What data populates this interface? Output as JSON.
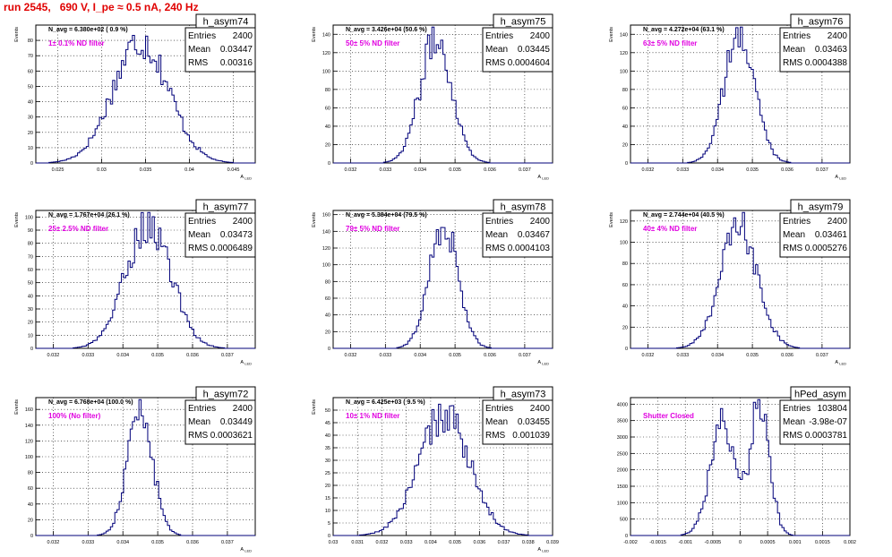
{
  "header": {
    "run_title": "run 2545,   690 V, I_pe ≈ 0.5 nA, 240 Hz"
  },
  "colors": {
    "histogram": "#00007a",
    "annotation": "#e000e0",
    "title": "#e00000",
    "grid": "#000000"
  },
  "chart_data": [
    {
      "type": "histogram",
      "name": "h_asym74",
      "stats": {
        "entries": "2400",
        "mean": "0.03447",
        "rms": "0.00316"
      },
      "navg": "N_avg = 6.380e+02 ( 0.9 %)",
      "filter_label": "1± 0.1% ND filter",
      "ylabel": "Events",
      "xlabel": "A_LED",
      "xlim": [
        0.0225,
        0.0475
      ],
      "ylim": [
        0,
        90
      ],
      "xticks": [
        0.025,
        0.03,
        0.035,
        0.04,
        0.045
      ],
      "xtick_labels": [
        "0.025",
        "0.03",
        "0.035",
        "0.04",
        "0.045"
      ],
      "yticks": [
        0,
        10,
        20,
        30,
        40,
        50,
        60,
        70,
        80
      ],
      "ytick_labels": [
        "0",
        "10",
        "20",
        "30",
        "40",
        "50",
        "60",
        "70",
        "80"
      ],
      "grid": true,
      "mean": 0.03447,
      "sigma": 0.00316,
      "peak": 80
    },
    {
      "type": "histogram",
      "name": "h_asym75",
      "stats": {
        "entries": "2400",
        "mean": "0.03445",
        "rms": "0.0004604"
      },
      "navg": "N_avg = 3.426e+04 (50.6 %)",
      "filter_label": "50± 5% ND filter",
      "ylabel": "Events",
      "xlabel": "A_LED",
      "xlim": [
        0.0315,
        0.0378
      ],
      "ylim": [
        0,
        150
      ],
      "xticks": [
        0.032,
        0.033,
        0.034,
        0.035,
        0.036,
        0.037
      ],
      "xtick_labels": [
        "0.032",
        "0.033",
        "0.034",
        "0.035",
        "0.036",
        "0.037"
      ],
      "yticks": [
        0,
        20,
        40,
        60,
        80,
        100,
        120,
        140
      ],
      "ytick_labels": [
        "0",
        "20",
        "40",
        "60",
        "80",
        "100",
        "120",
        "140"
      ],
      "grid": true,
      "mean": 0.03445,
      "sigma": 0.00046,
      "peak": 135
    },
    {
      "type": "histogram",
      "name": "h_asym76",
      "stats": {
        "entries": "2400",
        "mean": "0.03463",
        "rms": "0.0004388"
      },
      "navg": "N_avg = 4.272e+04 (63.1 %)",
      "filter_label": "63± 5% ND filter",
      "ylabel": "Events",
      "xlabel": "A_LED",
      "xlim": [
        0.0315,
        0.0378
      ],
      "ylim": [
        0,
        150
      ],
      "xticks": [
        0.032,
        0.033,
        0.034,
        0.035,
        0.036,
        0.037
      ],
      "xtick_labels": [
        "0.032",
        "0.033",
        "0.034",
        "0.035",
        "0.036",
        "0.037"
      ],
      "yticks": [
        0,
        20,
        40,
        60,
        80,
        100,
        120,
        140
      ],
      "ytick_labels": [
        "0",
        "20",
        "40",
        "60",
        "80",
        "100",
        "120",
        "140"
      ],
      "grid": true,
      "mean": 0.03463,
      "sigma": 0.00044,
      "peak": 140
    },
    {
      "type": "histogram",
      "name": "h_asym77",
      "stats": {
        "entries": "2400",
        "mean": "0.03473",
        "rms": "0.0006489"
      },
      "navg": "N_avg = 1.767e+04 (26.1 %)",
      "filter_label": "25± 2.5% ND filter",
      "ylabel": "Events",
      "xlabel": "A_LED",
      "xlim": [
        0.0315,
        0.0378
      ],
      "ylim": [
        0,
        105
      ],
      "xticks": [
        0.032,
        0.033,
        0.034,
        0.035,
        0.036,
        0.037
      ],
      "xtick_labels": [
        "0.032",
        "0.033",
        "0.034",
        "0.035",
        "0.036",
        "0.037"
      ],
      "yticks": [
        0,
        10,
        20,
        30,
        40,
        50,
        60,
        70,
        80,
        90,
        100
      ],
      "ytick_labels": [
        "0",
        "10",
        "20",
        "30",
        "40",
        "50",
        "60",
        "70",
        "80",
        "90",
        "100"
      ],
      "grid": true,
      "mean": 0.03473,
      "sigma": 0.00065,
      "peak": 95
    },
    {
      "type": "histogram",
      "name": "h_asym78",
      "stats": {
        "entries": "2400",
        "mean": "0.03467",
        "rms": "0.0004103"
      },
      "navg": "N_avg = 5.384e+04 (79.5 %)",
      "filter_label": "79± 5% ND filter",
      "ylabel": "Events",
      "xlabel": "A_LED",
      "xlim": [
        0.0315,
        0.0378
      ],
      "ylim": [
        0,
        165
      ],
      "xticks": [
        0.032,
        0.033,
        0.034,
        0.035,
        0.036,
        0.037
      ],
      "xtick_labels": [
        "0.032",
        "0.033",
        "0.034",
        "0.035",
        "0.036",
        "0.037"
      ],
      "yticks": [
        0,
        20,
        40,
        60,
        80,
        100,
        120,
        140,
        160
      ],
      "ytick_labels": [
        "0",
        "20",
        "40",
        "60",
        "80",
        "100",
        "120",
        "140",
        "160"
      ],
      "grid": true,
      "mean": 0.03467,
      "sigma": 0.00041,
      "peak": 150
    },
    {
      "type": "histogram",
      "name": "h_asym79",
      "stats": {
        "entries": "2400",
        "mean": "0.03461",
        "rms": "0.0005276"
      },
      "navg": "N_avg = 2.744e+04 (40.5 %)",
      "filter_label": "40± 4% ND filter",
      "ylabel": "Events",
      "xlabel": "A_LED",
      "xlim": [
        0.0315,
        0.0378
      ],
      "ylim": [
        0,
        130
      ],
      "xticks": [
        0.032,
        0.033,
        0.034,
        0.035,
        0.036,
        0.037
      ],
      "xtick_labels": [
        "0.032",
        "0.033",
        "0.034",
        "0.035",
        "0.036",
        "0.037"
      ],
      "yticks": [
        0,
        20,
        40,
        60,
        80,
        100,
        120
      ],
      "ytick_labels": [
        "0",
        "20",
        "40",
        "60",
        "80",
        "100",
        "120"
      ],
      "grid": true,
      "mean": 0.03461,
      "sigma": 0.00053,
      "peak": 115
    },
    {
      "type": "histogram",
      "name": "h_asym72",
      "stats": {
        "entries": "2400",
        "mean": "0.03449",
        "rms": "0.0003621"
      },
      "navg": "N_avg = 6.768e+04 (100.0 %)",
      "filter_label": "100% (No filter)",
      "ylabel": "Events",
      "xlabel": "A_LED",
      "xlim": [
        0.0315,
        0.0378
      ],
      "ylim": [
        0,
        175
      ],
      "xticks": [
        0.032,
        0.033,
        0.034,
        0.035,
        0.036,
        0.037
      ],
      "xtick_labels": [
        "0.032",
        "0.033",
        "0.034",
        "0.035",
        "0.036",
        "0.037"
      ],
      "yticks": [
        0,
        20,
        40,
        60,
        80,
        100,
        120,
        140,
        160
      ],
      "ytick_labels": [
        "0",
        "20",
        "40",
        "60",
        "80",
        "100",
        "120",
        "140",
        "160"
      ],
      "grid": true,
      "mean": 0.03449,
      "sigma": 0.00036,
      "peak": 160
    },
    {
      "type": "histogram",
      "name": "h_asym73",
      "stats": {
        "entries": "2400",
        "mean": "0.03455",
        "rms": "0.001039"
      },
      "navg": "N_avg = 6.425e+03 ( 9.5 %)",
      "filter_label": "10± 1% ND filter",
      "ylabel": "Events",
      "xlabel": "A_LED",
      "xlim": [
        0.03,
        0.039
      ],
      "ylim": [
        0,
        55
      ],
      "xticks": [
        0.03,
        0.031,
        0.032,
        0.033,
        0.034,
        0.035,
        0.036,
        0.037,
        0.038,
        0.039
      ],
      "xtick_labels": [
        "0.03",
        "0.031",
        "0.032",
        "0.033",
        "0.034",
        "0.035",
        "0.036",
        "0.037",
        "0.038",
        "0.039"
      ],
      "yticks": [
        0,
        5,
        10,
        15,
        20,
        25,
        30,
        35,
        40,
        45,
        50
      ],
      "ytick_labels": [
        "0",
        "5",
        "10",
        "15",
        "20",
        "25",
        "30",
        "35",
        "40",
        "45",
        "50"
      ],
      "grid": true,
      "mean": 0.03455,
      "sigma": 0.00104,
      "peak": 48
    },
    {
      "type": "histogram",
      "name": "hPed_asym",
      "stats": {
        "entries": "103804",
        "mean": "-3.98e-07",
        "rms": "0.0003781"
      },
      "navg": "",
      "filter_label": "Shutter Closed",
      "ylabel": "",
      "xlabel": "",
      "xlim": [
        -0.002,
        0.002
      ],
      "ylim": [
        0,
        4200
      ],
      "xticks": [
        -0.002,
        -0.0015,
        -0.001,
        -0.0005,
        0,
        0.0005,
        0.001,
        0.0015,
        0.002
      ],
      "xtick_labels": [
        "-0.002",
        "-0.0015",
        "-0.001",
        "-0.0005",
        "0",
        "0.0005",
        "0.001",
        "0.0015",
        "0.002"
      ],
      "yticks": [
        0,
        500,
        1000,
        1500,
        2000,
        2500,
        3000,
        3500,
        4000
      ],
      "ytick_labels": [
        "0",
        "500",
        "1000",
        "1500",
        "2000",
        "2500",
        "3000",
        "3500",
        "4000"
      ],
      "grid": true,
      "bimodal": true,
      "peak": 4000
    }
  ]
}
